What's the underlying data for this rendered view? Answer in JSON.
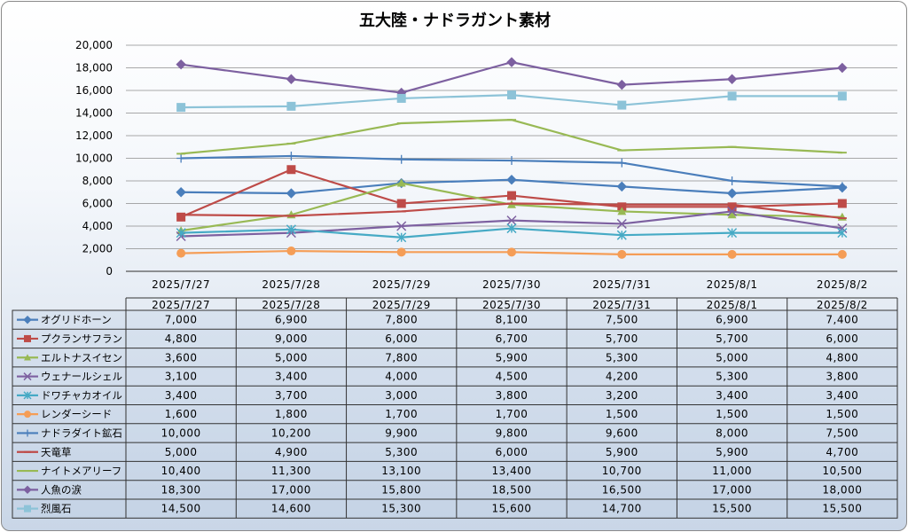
{
  "chart_data": {
    "type": "line",
    "title": "五大陸・ナドラガント素材",
    "categories": [
      "2025/7/27",
      "2025/7/28",
      "2025/7/29",
      "2025/7/30",
      "2025/7/31",
      "2025/8/1",
      "2025/8/2"
    ],
    "ylim": [
      0,
      20000
    ],
    "yticks": [
      "0",
      "2,000",
      "4,000",
      "6,000",
      "8,000",
      "10,000",
      "12,000",
      "14,000",
      "16,000",
      "18,000",
      "20,000"
    ],
    "grid": true,
    "legend": "data-table",
    "series": [
      {
        "name": "オグリドホーン",
        "color": "#4a7ebb",
        "marker": "diamond",
        "values": [
          7000,
          6900,
          7800,
          8100,
          7500,
          6900,
          7400
        ],
        "labels": [
          "7,000",
          "6,900",
          "7,800",
          "8,100",
          "7,500",
          "6,900",
          "7,400"
        ]
      },
      {
        "name": "プクランサフラン",
        "color": "#be4b48",
        "marker": "square",
        "values": [
          4800,
          9000,
          6000,
          6700,
          5700,
          5700,
          6000
        ],
        "labels": [
          "4,800",
          "9,000",
          "6,000",
          "6,700",
          "5,700",
          "5,700",
          "6,000"
        ]
      },
      {
        "name": "エルトナスイセン",
        "color": "#98b954",
        "marker": "triangle",
        "values": [
          3600,
          5000,
          7800,
          5900,
          5300,
          5000,
          4800
        ],
        "labels": [
          "3,600",
          "5,000",
          "7,800",
          "5,900",
          "5,300",
          "5,000",
          "4,800"
        ]
      },
      {
        "name": "ウェナールシェル",
        "color": "#7d60a0",
        "marker": "x",
        "values": [
          3100,
          3400,
          4000,
          4500,
          4200,
          5300,
          3800
        ],
        "labels": [
          "3,100",
          "3,400",
          "4,000",
          "4,500",
          "4,200",
          "5,300",
          "3,800"
        ]
      },
      {
        "name": "ドワチャカオイル",
        "color": "#46aac5",
        "marker": "star",
        "values": [
          3400,
          3700,
          3000,
          3800,
          3200,
          3400,
          3400
        ],
        "labels": [
          "3,400",
          "3,700",
          "3,000",
          "3,800",
          "3,200",
          "3,400",
          "3,400"
        ]
      },
      {
        "name": "レンダーシード",
        "color": "#f59d56",
        "marker": "circle",
        "values": [
          1600,
          1800,
          1700,
          1700,
          1500,
          1500,
          1500
        ],
        "labels": [
          "1,600",
          "1,800",
          "1,700",
          "1,700",
          "1,500",
          "1,500",
          "1,500"
        ]
      },
      {
        "name": "ナドラダイト鉱石",
        "color": "#4a7ebb",
        "marker": "plus",
        "values": [
          10000,
          10200,
          9900,
          9800,
          9600,
          8000,
          7500
        ],
        "labels": [
          "10,000",
          "10,200",
          "9,900",
          "9,800",
          "9,600",
          "8,000",
          "7,500"
        ]
      },
      {
        "name": "天竜草",
        "color": "#be4b48",
        "marker": "dash",
        "values": [
          5000,
          4900,
          5300,
          6000,
          5900,
          5900,
          4700
        ],
        "labels": [
          "5,000",
          "4,900",
          "5,300",
          "6,000",
          "5,900",
          "5,900",
          "4,700"
        ]
      },
      {
        "name": "ナイトメアリーフ",
        "color": "#98b954",
        "marker": "dash",
        "values": [
          10400,
          11300,
          13100,
          13400,
          10700,
          11000,
          10500
        ],
        "labels": [
          "10,400",
          "11,300",
          "13,100",
          "13,400",
          "10,700",
          "11,000",
          "10,500"
        ]
      },
      {
        "name": "人魚の涙",
        "color": "#7d60a0",
        "marker": "diamond",
        "values": [
          18300,
          17000,
          15800,
          18500,
          16500,
          17000,
          18000
        ],
        "labels": [
          "18,300",
          "17,000",
          "15,800",
          "18,500",
          "16,500",
          "17,000",
          "18,000"
        ]
      },
      {
        "name": "烈風石",
        "color": "#8dc3d8",
        "marker": "square",
        "values": [
          14500,
          14600,
          15300,
          15600,
          14700,
          15500,
          15500
        ],
        "labels": [
          "14,500",
          "14,600",
          "15,300",
          "15,600",
          "14,700",
          "15,500",
          "15,500"
        ]
      }
    ]
  }
}
